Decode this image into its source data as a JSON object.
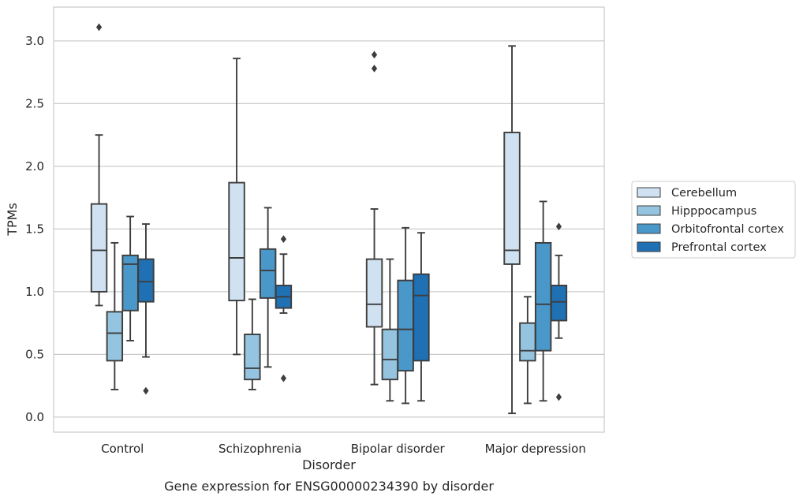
{
  "caption": "Gene expression for ENSG00000234390 by disorder",
  "chart_data": {
    "type": "boxplot",
    "xlabel": "Disorder",
    "ylabel": "TPMs",
    "ylim": [
      -0.12,
      3.27
    ],
    "yticks": [
      "0.0",
      "0.5",
      "1.0",
      "1.5",
      "2.0",
      "2.5",
      "3.0"
    ],
    "categories": [
      "Control",
      "Schizophrenia",
      "Bipolar disorder",
      "Major depression"
    ],
    "grid": "horizontal",
    "legend_position": "right",
    "series": [
      {
        "name": "Cerebellum",
        "color": "#d0e1f2",
        "boxes": [
          {
            "whislo": 0.89,
            "q1": 1.0,
            "med": 1.33,
            "q3": 1.7,
            "whishi": 2.25,
            "fliers": [
              3.11
            ]
          },
          {
            "whislo": 0.5,
            "q1": 0.93,
            "med": 1.27,
            "q3": 1.87,
            "whishi": 2.86,
            "fliers": []
          },
          {
            "whislo": 0.26,
            "q1": 0.72,
            "med": 0.9,
            "q3": 1.26,
            "whishi": 1.66,
            "fliers": [
              2.78,
              2.89
            ]
          },
          {
            "whislo": 0.03,
            "q1": 1.22,
            "med": 1.33,
            "q3": 2.27,
            "whishi": 2.96,
            "fliers": []
          }
        ]
      },
      {
        "name": "Hipppocampus",
        "color": "#94c4df",
        "boxes": [
          {
            "whislo": 0.22,
            "q1": 0.45,
            "med": 0.67,
            "q3": 0.84,
            "whishi": 1.39,
            "fliers": []
          },
          {
            "whislo": 0.22,
            "q1": 0.3,
            "med": 0.39,
            "q3": 0.66,
            "whishi": 0.94,
            "fliers": []
          },
          {
            "whislo": 0.13,
            "q1": 0.3,
            "med": 0.46,
            "q3": 0.7,
            "whishi": 1.26,
            "fliers": []
          },
          {
            "whislo": 0.11,
            "q1": 0.45,
            "med": 0.53,
            "q3": 0.75,
            "whishi": 0.96,
            "fliers": []
          }
        ]
      },
      {
        "name": "Orbitofrontal cortex",
        "color": "#4a98c9",
        "boxes": [
          {
            "whislo": 0.61,
            "q1": 0.85,
            "med": 1.22,
            "q3": 1.29,
            "whishi": 1.6,
            "fliers": []
          },
          {
            "whislo": 0.4,
            "q1": 0.95,
            "med": 1.17,
            "q3": 1.34,
            "whishi": 1.67,
            "fliers": []
          },
          {
            "whislo": 0.11,
            "q1": 0.37,
            "med": 0.7,
            "q3": 1.09,
            "whishi": 1.51,
            "fliers": []
          },
          {
            "whislo": 0.13,
            "q1": 0.53,
            "med": 0.9,
            "q3": 1.39,
            "whishi": 1.72,
            "fliers": []
          }
        ]
      },
      {
        "name": "Prefrontal cortex",
        "color": "#2070b4",
        "boxes": [
          {
            "whislo": 0.48,
            "q1": 0.92,
            "med": 1.08,
            "q3": 1.26,
            "whishi": 1.54,
            "fliers": [
              0.21
            ]
          },
          {
            "whislo": 0.83,
            "q1": 0.87,
            "med": 0.96,
            "q3": 1.05,
            "whishi": 1.3,
            "fliers": [
              0.31,
              1.42
            ]
          },
          {
            "whislo": 0.13,
            "q1": 0.45,
            "med": 0.97,
            "q3": 1.14,
            "whishi": 1.47,
            "fliers": []
          },
          {
            "whislo": 0.63,
            "q1": 0.77,
            "med": 0.92,
            "q3": 1.05,
            "whishi": 1.29,
            "fliers": [
              0.16,
              1.52
            ]
          }
        ]
      }
    ]
  }
}
